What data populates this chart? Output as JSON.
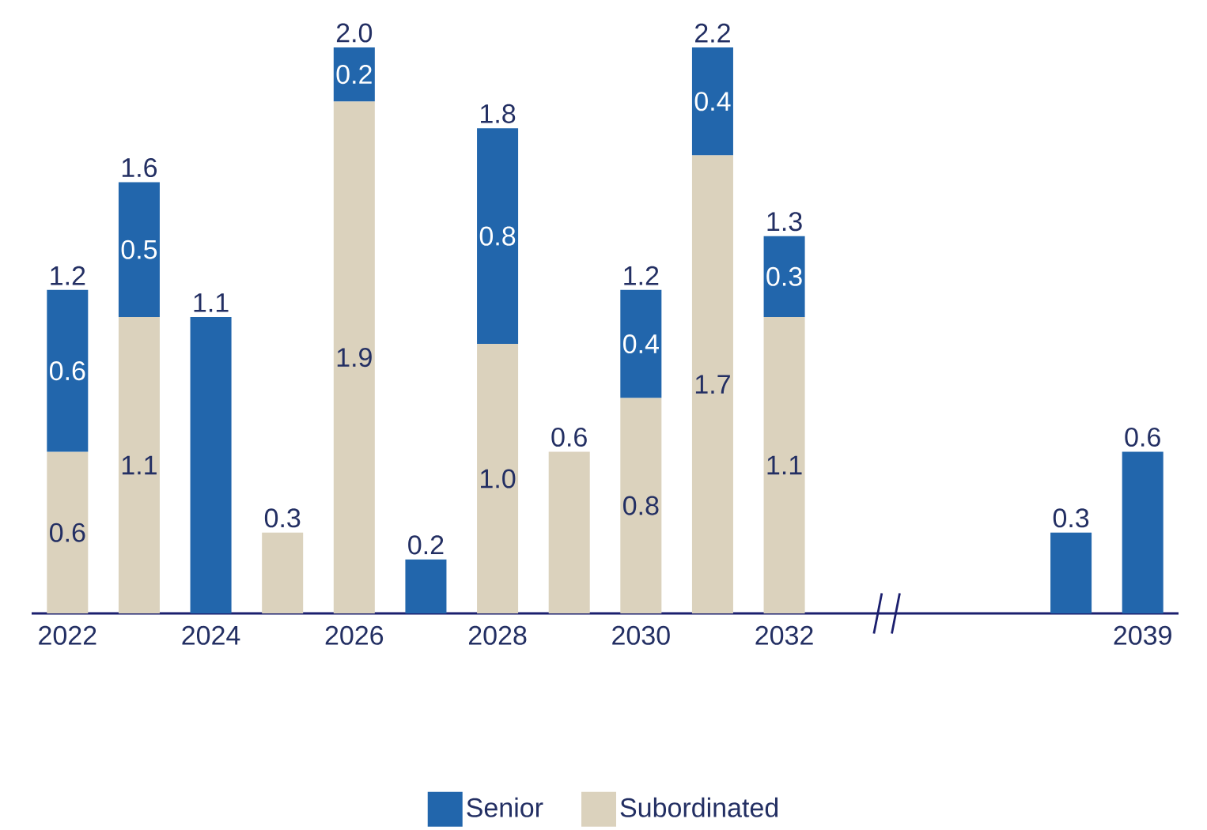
{
  "chart_data": {
    "type": "bar",
    "stacked": true,
    "legend": "bottom",
    "categories": [
      "2022",
      null,
      "2024",
      null,
      "2026",
      null,
      "2028",
      null,
      "2030",
      null,
      "2032",
      null,
      null,
      null,
      null,
      "2039"
    ],
    "series": [
      {
        "name": "Subordinated",
        "color": "#dbd2bd",
        "values": [
          0.6,
          1.1,
          null,
          0.3,
          1.9,
          null,
          1.0,
          0.6,
          0.8,
          1.7,
          1.1,
          null,
          null,
          null,
          null,
          null
        ],
        "value_labels": [
          "0.6",
          "1.1",
          null,
          null,
          "1.9",
          null,
          "1.0",
          null,
          "0.8",
          "1.7",
          "1.1",
          null,
          null,
          null,
          null,
          null
        ]
      },
      {
        "name": "Senior",
        "color": "#2266ac",
        "values": [
          0.6,
          0.5,
          1.1,
          null,
          0.2,
          0.2,
          0.8,
          null,
          0.4,
          0.4,
          0.3,
          null,
          null,
          null,
          0.3,
          0.6
        ],
        "value_labels": [
          "0.6",
          "0.5",
          null,
          null,
          "0.2",
          null,
          "0.8",
          null,
          "0.4",
          "0.4",
          "0.3",
          null,
          null,
          null,
          null,
          null
        ]
      }
    ],
    "totals": [
      "1.2",
      "1.6",
      "1.1",
      "0.3",
      "2.0",
      "0.2",
      "1.8",
      "0.6",
      "1.2",
      "2.2",
      "1.3",
      null,
      null,
      null,
      "0.3",
      "0.6"
    ]
  }
}
